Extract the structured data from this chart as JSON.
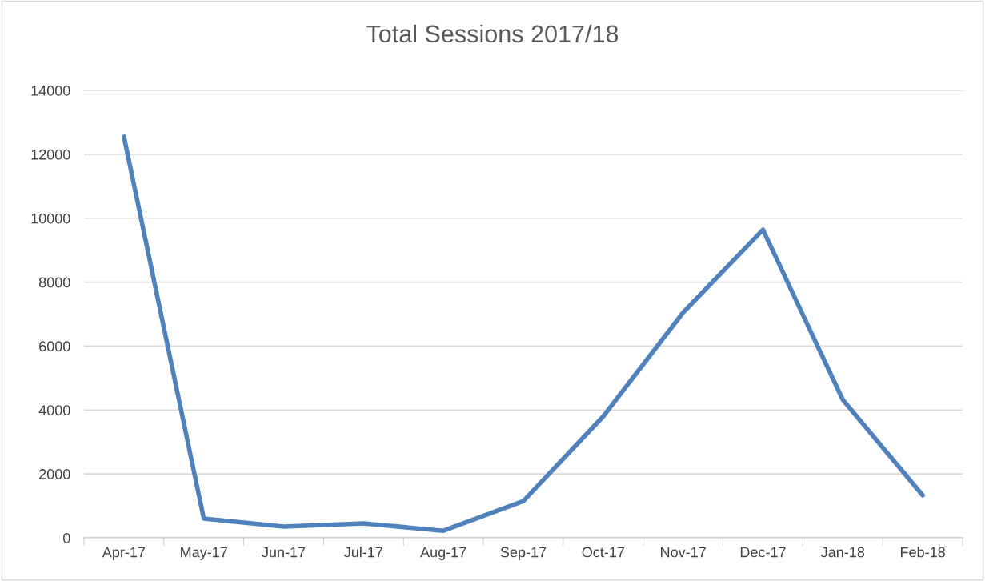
{
  "chart_data": {
    "type": "line",
    "title": "Total Sessions 2017/18",
    "categories": [
      "Apr-17",
      "May-17",
      "Jun-17",
      "Jul-17",
      "Aug-17",
      "Sep-17",
      "Oct-17",
      "Nov-17",
      "Dec-17",
      "Jan-18",
      "Feb-18"
    ],
    "series": [
      {
        "color": "#4f81bd",
        "values": [
          12550,
          600,
          350,
          450,
          220,
          1150,
          3800,
          7050,
          9640,
          4320,
          1330
        ]
      }
    ],
    "ylim": [
      0,
      14000
    ],
    "yticks": [
      0,
      2000,
      4000,
      6000,
      8000,
      10000,
      12000,
      14000
    ],
    "grid": "y",
    "marker": "none",
    "line_style": "solid"
  }
}
